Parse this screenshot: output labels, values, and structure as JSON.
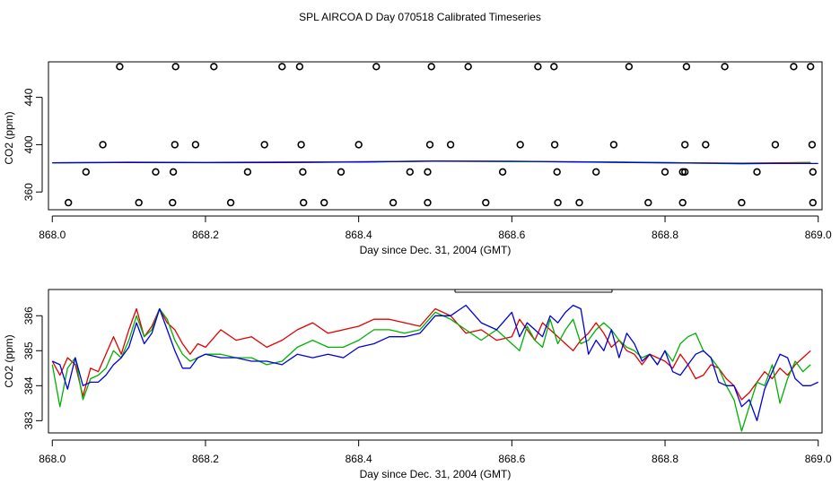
{
  "title": "SPL AIRCOA D  Day 070518  Calibrated Timeseries",
  "chart_data": [
    {
      "type": "scatter",
      "name": "raw-points",
      "xlabel": "Day since Dec. 31, 2004 (GMT)",
      "ylabel": "CO2 (ppm)",
      "xlim": [
        867.995,
        869.005
      ],
      "ylim": [
        345,
        470
      ],
      "xticks": [
        868.0,
        868.2,
        868.4,
        868.6,
        868.8,
        869.0
      ],
      "xtick_labels": [
        "868.0",
        "868.2",
        "868.4",
        "868.6",
        "868.8",
        "869.0"
      ],
      "yticks": [
        360,
        400,
        440
      ],
      "ytick_labels": [
        "360",
        "400",
        "440"
      ],
      "points": [
        {
          "x": 868.088,
          "y": 466
        },
        {
          "x": 868.161,
          "y": 466
        },
        {
          "x": 868.211,
          "y": 466
        },
        {
          "x": 868.3,
          "y": 466
        },
        {
          "x": 868.323,
          "y": 466
        },
        {
          "x": 868.423,
          "y": 466
        },
        {
          "x": 868.495,
          "y": 466
        },
        {
          "x": 868.543,
          "y": 466
        },
        {
          "x": 868.634,
          "y": 466
        },
        {
          "x": 868.655,
          "y": 466
        },
        {
          "x": 868.753,
          "y": 466
        },
        {
          "x": 868.828,
          "y": 466
        },
        {
          "x": 868.878,
          "y": 466
        },
        {
          "x": 868.968,
          "y": 466
        },
        {
          "x": 868.99,
          "y": 466
        },
        {
          "x": 868.066,
          "y": 400
        },
        {
          "x": 868.16,
          "y": 400
        },
        {
          "x": 868.187,
          "y": 400
        },
        {
          "x": 868.277,
          "y": 400
        },
        {
          "x": 868.325,
          "y": 400
        },
        {
          "x": 868.4,
          "y": 400
        },
        {
          "x": 868.493,
          "y": 400
        },
        {
          "x": 868.52,
          "y": 400
        },
        {
          "x": 868.611,
          "y": 400
        },
        {
          "x": 868.656,
          "y": 400
        },
        {
          "x": 868.733,
          "y": 400
        },
        {
          "x": 868.826,
          "y": 400
        },
        {
          "x": 868.853,
          "y": 400
        },
        {
          "x": 868.944,
          "y": 400
        },
        {
          "x": 868.992,
          "y": 400
        },
        {
          "x": 868.044,
          "y": 377
        },
        {
          "x": 868.135,
          "y": 377
        },
        {
          "x": 868.158,
          "y": 377
        },
        {
          "x": 868.255,
          "y": 377
        },
        {
          "x": 868.327,
          "y": 377
        },
        {
          "x": 868.377,
          "y": 377
        },
        {
          "x": 868.467,
          "y": 377
        },
        {
          "x": 868.49,
          "y": 377
        },
        {
          "x": 868.588,
          "y": 377
        },
        {
          "x": 868.659,
          "y": 377
        },
        {
          "x": 868.71,
          "y": 377
        },
        {
          "x": 868.8,
          "y": 377
        },
        {
          "x": 868.823,
          "y": 377
        },
        {
          "x": 868.826,
          "y": 377
        },
        {
          "x": 868.92,
          "y": 377
        },
        {
          "x": 868.993,
          "y": 377
        },
        {
          "x": 868.021,
          "y": 351
        },
        {
          "x": 868.113,
          "y": 351
        },
        {
          "x": 868.157,
          "y": 351
        },
        {
          "x": 868.233,
          "y": 351
        },
        {
          "x": 868.328,
          "y": 351
        },
        {
          "x": 868.355,
          "y": 351
        },
        {
          "x": 868.445,
          "y": 351
        },
        {
          "x": 868.49,
          "y": 351
        },
        {
          "x": 868.566,
          "y": 351
        },
        {
          "x": 868.66,
          "y": 351
        },
        {
          "x": 868.688,
          "y": 351
        },
        {
          "x": 868.778,
          "y": 351
        },
        {
          "x": 868.823,
          "y": 351
        },
        {
          "x": 868.9,
          "y": 351
        },
        {
          "x": 868.993,
          "y": 351
        }
      ],
      "series": [
        {
          "name": "red",
          "color": "#e00000",
          "x": [
            868.0,
            868.1,
            868.2,
            868.3,
            868.4,
            868.5,
            868.6,
            868.7,
            868.8,
            868.9,
            868.99
          ],
          "values": [
            384.7,
            385.2,
            385.0,
            385.3,
            385.6,
            386.0,
            385.8,
            385.4,
            384.8,
            384.3,
            384.9
          ]
        },
        {
          "name": "green",
          "color": "#00b000",
          "x": [
            868.0,
            868.1,
            868.2,
            868.3,
            868.4,
            868.5,
            868.6,
            868.7,
            868.8,
            868.9,
            868.99
          ],
          "values": [
            384.6,
            385.0,
            384.9,
            385.0,
            385.4,
            386.1,
            385.6,
            385.5,
            384.9,
            383.8,
            384.6
          ]
        },
        {
          "name": "blue",
          "color": "#0000dd",
          "x": [
            868.0,
            868.1,
            868.2,
            868.3,
            868.4,
            868.5,
            868.6,
            868.7,
            868.8,
            868.9,
            869.0
          ],
          "values": [
            384.7,
            384.9,
            384.8,
            384.9,
            385.3,
            386.1,
            386.0,
            385.3,
            384.6,
            384.2,
            384.1
          ]
        }
      ]
    },
    {
      "type": "line",
      "name": "calibrated-timeseries",
      "xlabel": "Day since Dec. 31, 2004 (GMT)",
      "ylabel": "CO2 (ppm)",
      "xlim": [
        867.995,
        869.005
      ],
      "ylim": [
        382.65,
        386.75
      ],
      "xticks": [
        868.0,
        868.2,
        868.4,
        868.6,
        868.8,
        869.0
      ],
      "xtick_labels": [
        "868.0",
        "868.2",
        "868.4",
        "868.6",
        "868.8",
        "869.0"
      ],
      "yticks": [
        383,
        384,
        385,
        386
      ],
      "ytick_labels": [
        "383",
        "384",
        "385",
        "386"
      ],
      "series": [
        {
          "name": "red",
          "color": "#e00000",
          "x": [
            868.0,
            868.01,
            868.02,
            868.03,
            868.04,
            868.05,
            868.06,
            868.07,
            868.08,
            868.09,
            868.1,
            868.11,
            868.12,
            868.13,
            868.14,
            868.15,
            868.16,
            868.17,
            868.18,
            868.19,
            868.2,
            868.22,
            868.24,
            868.26,
            868.28,
            868.3,
            868.32,
            868.34,
            868.36,
            868.38,
            868.4,
            868.42,
            868.44,
            868.46,
            868.48,
            868.5,
            868.52,
            868.54,
            868.56,
            868.58,
            868.6,
            868.61,
            868.62,
            868.63,
            868.64,
            868.65,
            868.66,
            868.67,
            868.68,
            868.69,
            868.7,
            868.71,
            868.72,
            868.73,
            868.74,
            868.75,
            868.76,
            868.77,
            868.78,
            868.79,
            868.8,
            868.81,
            868.82,
            868.83,
            868.84,
            868.85,
            868.86,
            868.87,
            868.88,
            868.89,
            868.9,
            868.91,
            868.92,
            868.93,
            868.94,
            868.95,
            868.96,
            868.97,
            868.98,
            868.99
          ],
          "values": [
            384.7,
            384.3,
            384.8,
            384.6,
            383.7,
            384.5,
            384.4,
            384.9,
            385.4,
            384.9,
            385.6,
            386.2,
            385.4,
            385.7,
            386.2,
            385.8,
            385.6,
            385.2,
            384.9,
            385.2,
            385.1,
            385.6,
            385.3,
            385.4,
            385.1,
            385.3,
            385.6,
            385.8,
            385.5,
            385.6,
            385.7,
            385.9,
            385.9,
            385.8,
            385.7,
            386.2,
            386.0,
            385.5,
            385.6,
            385.3,
            385.4,
            385.9,
            385.6,
            385.3,
            385.8,
            385.6,
            385.4,
            385.2,
            385.0,
            385.3,
            385.5,
            385.8,
            385.5,
            385.1,
            385.3,
            385.0,
            384.9,
            384.6,
            384.9,
            384.8,
            384.7,
            384.5,
            384.9,
            384.6,
            384.2,
            384.3,
            384.6,
            384.5,
            384.2,
            384.0,
            383.6,
            383.8,
            384.1,
            384.4,
            384.2,
            384.5,
            384.3,
            384.6,
            384.8,
            385.0
          ]
        },
        {
          "name": "green",
          "color": "#00b000",
          "x": [
            868.0,
            868.01,
            868.02,
            868.03,
            868.04,
            868.05,
            868.06,
            868.07,
            868.08,
            868.09,
            868.1,
            868.11,
            868.12,
            868.13,
            868.14,
            868.15,
            868.16,
            868.17,
            868.18,
            868.19,
            868.2,
            868.22,
            868.24,
            868.26,
            868.28,
            868.3,
            868.32,
            868.34,
            868.36,
            868.38,
            868.4,
            868.42,
            868.44,
            868.46,
            868.48,
            868.5,
            868.52,
            868.54,
            868.56,
            868.58,
            868.6,
            868.61,
            868.62,
            868.63,
            868.64,
            868.65,
            868.66,
            868.67,
            868.68,
            868.69,
            868.7,
            868.71,
            868.72,
            868.73,
            868.74,
            868.75,
            868.76,
            868.77,
            868.78,
            868.79,
            868.8,
            868.81,
            868.82,
            868.83,
            868.84,
            868.85,
            868.86,
            868.87,
            868.88,
            868.89,
            868.9,
            868.91,
            868.92,
            868.93,
            868.94,
            868.95,
            868.96,
            868.97,
            868.98,
            868.99
          ],
          "values": [
            384.6,
            383.4,
            384.5,
            384.8,
            383.6,
            384.2,
            384.3,
            384.5,
            385.0,
            384.8,
            385.3,
            386.0,
            385.4,
            385.6,
            386.2,
            385.9,
            385.3,
            384.9,
            384.7,
            384.8,
            384.9,
            384.9,
            384.8,
            384.8,
            384.6,
            384.7,
            385.1,
            385.3,
            385.1,
            385.1,
            385.3,
            385.6,
            385.6,
            385.5,
            385.6,
            386.1,
            385.9,
            385.6,
            385.3,
            385.6,
            385.2,
            385.0,
            385.7,
            385.3,
            385.1,
            385.9,
            385.2,
            385.6,
            385.9,
            385.2,
            385.3,
            385.6,
            385.8,
            385.6,
            385.3,
            385.1,
            385.0,
            384.8,
            384.9,
            384.6,
            385.0,
            384.7,
            385.2,
            385.4,
            385.5,
            385.0,
            384.8,
            384.5,
            384.0,
            383.6,
            382.7,
            383.4,
            384.1,
            384.0,
            384.6,
            383.5,
            384.2,
            384.7,
            384.4,
            384.6
          ]
        },
        {
          "name": "blue",
          "color": "#0000dd",
          "x": [
            868.0,
            868.01,
            868.02,
            868.03,
            868.04,
            868.05,
            868.06,
            868.07,
            868.08,
            868.09,
            868.1,
            868.11,
            868.12,
            868.13,
            868.14,
            868.15,
            868.16,
            868.17,
            868.18,
            868.19,
            868.2,
            868.22,
            868.24,
            868.26,
            868.28,
            868.3,
            868.32,
            868.34,
            868.36,
            868.38,
            868.4,
            868.42,
            868.44,
            868.46,
            868.48,
            868.5,
            868.52,
            868.54,
            868.56,
            868.58,
            868.6,
            868.61,
            868.62,
            868.63,
            868.64,
            868.65,
            868.66,
            868.67,
            868.68,
            868.69,
            868.7,
            868.71,
            868.72,
            868.73,
            868.74,
            868.75,
            868.76,
            868.77,
            868.78,
            868.79,
            868.8,
            868.81,
            868.82,
            868.83,
            868.84,
            868.85,
            868.86,
            868.87,
            868.88,
            868.89,
            868.9,
            868.91,
            868.92,
            868.93,
            868.94,
            868.95,
            868.96,
            868.97,
            868.98,
            868.99,
            869.0
          ],
          "values": [
            384.7,
            384.6,
            383.9,
            384.8,
            384.0,
            384.1,
            384.1,
            384.3,
            384.6,
            384.8,
            385.1,
            385.8,
            385.2,
            385.5,
            386.2,
            385.6,
            385.0,
            384.5,
            384.5,
            384.8,
            384.9,
            384.8,
            384.8,
            384.7,
            384.7,
            384.6,
            384.9,
            384.8,
            384.9,
            384.8,
            385.1,
            385.2,
            385.4,
            385.4,
            385.5,
            386.0,
            386.0,
            386.3,
            385.8,
            385.6,
            386.1,
            385.4,
            385.8,
            385.6,
            385.4,
            386.0,
            385.8,
            386.1,
            386.3,
            386.2,
            384.9,
            385.3,
            385.0,
            385.6,
            384.8,
            385.5,
            385.2,
            384.7,
            384.9,
            384.6,
            385.0,
            384.4,
            384.3,
            384.6,
            384.9,
            385.0,
            384.8,
            384.1,
            384.0,
            384.0,
            383.4,
            383.6,
            383.0,
            383.9,
            384.4,
            384.9,
            384.8,
            384.2,
            384.0,
            384.0,
            384.1
          ]
        }
      ]
    }
  ]
}
